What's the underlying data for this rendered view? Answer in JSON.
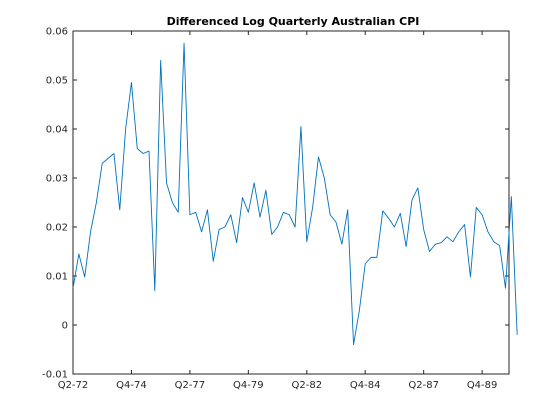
{
  "chart_data": {
    "type": "line",
    "title": "Differenced Log Quarterly Australian CPI",
    "xlabel": "",
    "ylabel": "",
    "xlim": [
      1972.25,
      1990.9
    ],
    "ylim": [
      -0.01,
      0.06
    ],
    "x_ticks": [
      {
        "value": 1972.25,
        "label": "Q2-72"
      },
      {
        "value": 1974.75,
        "label": "Q4-74"
      },
      {
        "value": 1977.25,
        "label": "Q2-77"
      },
      {
        "value": 1979.75,
        "label": "Q4-79"
      },
      {
        "value": 1982.25,
        "label": "Q2-82"
      },
      {
        "value": 1984.75,
        "label": "Q4-84"
      },
      {
        "value": 1987.25,
        "label": "Q2-87"
      },
      {
        "value": 1989.75,
        "label": "Q4-89"
      }
    ],
    "y_ticks": [
      {
        "value": -0.01,
        "label": "-0.01"
      },
      {
        "value": 0,
        "label": "0"
      },
      {
        "value": 0.01,
        "label": "0.01"
      },
      {
        "value": 0.02,
        "label": "0.02"
      },
      {
        "value": 0.03,
        "label": "0.03"
      },
      {
        "value": 0.04,
        "label": "0.04"
      },
      {
        "value": 0.05,
        "label": "0.05"
      },
      {
        "value": 0.06,
        "label": "0.06"
      }
    ],
    "grid": false,
    "line_color": "#0072bd",
    "series": [
      {
        "x_start": 1972.25,
        "x_step": 0.25,
        "values": [
          0.0075,
          0.0145,
          0.0098,
          0.019,
          0.025,
          0.033,
          0.034,
          0.035,
          0.0235,
          0.04,
          0.0495,
          0.036,
          0.035,
          0.0355,
          0.007,
          0.054,
          0.029,
          0.025,
          0.023,
          0.0575,
          0.0225,
          0.023,
          0.019,
          0.0235,
          0.013,
          0.0195,
          0.02,
          0.0225,
          0.0168,
          0.026,
          0.023,
          0.029,
          0.022,
          0.0275,
          0.0185,
          0.02,
          0.023,
          0.0225,
          0.02,
          0.0405,
          0.017,
          0.024,
          0.0343,
          0.03,
          0.0225,
          0.021,
          0.0165,
          0.0235,
          -0.004,
          0.003,
          0.0125,
          0.0138,
          0.0138,
          0.0233,
          0.0218,
          0.02,
          0.0228,
          0.016,
          0.0255,
          0.028,
          0.0195,
          0.015,
          0.0165,
          0.0168,
          0.018,
          0.017,
          0.019,
          0.0205,
          0.0098,
          0.024,
          0.0225,
          0.019,
          0.017,
          0.0162,
          0.0075,
          0.0262,
          -0.002
        ]
      }
    ]
  }
}
